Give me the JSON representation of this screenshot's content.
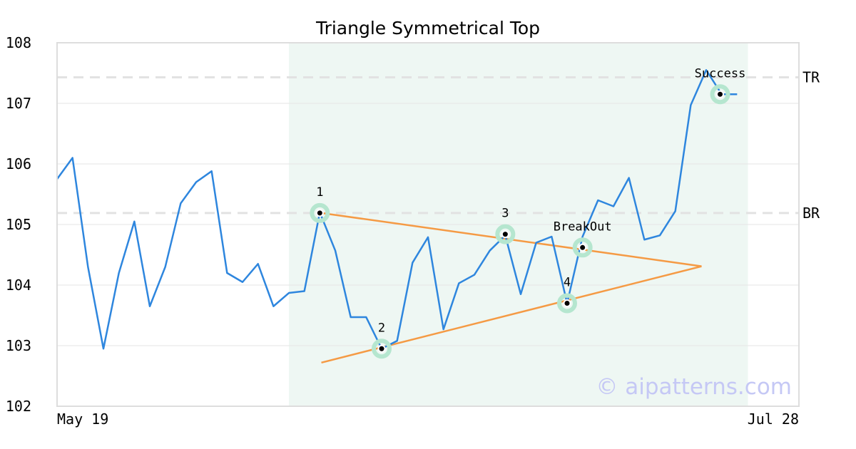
{
  "chart_data": {
    "type": "line",
    "title": "Triangle Symmetrical Top",
    "xlabel": "",
    "ylabel": "",
    "ylim": [
      102,
      108
    ],
    "yticks": [
      102,
      103,
      104,
      105,
      106,
      107,
      108
    ],
    "xlim": [
      0,
      48
    ],
    "x_tick_labels": [
      {
        "x": 0,
        "label": "May 19"
      },
      {
        "x": 48,
        "label": "Jul 28"
      }
    ],
    "grid": "horizontal",
    "series": [
      {
        "color": "#2e86de",
        "values": [
          105.75,
          106.1,
          104.3,
          102.95,
          104.2,
          105.05,
          103.65,
          104.3,
          105.35,
          105.7,
          105.88,
          104.2,
          104.05,
          104.35,
          103.65,
          103.87,
          103.9,
          105.2,
          104.57,
          103.47,
          103.47,
          102.95,
          103.08,
          104.37,
          104.79,
          103.27,
          104.03,
          104.17,
          104.57,
          104.82,
          103.85,
          104.7,
          104.8,
          103.7,
          104.8,
          105.4,
          105.3,
          105.77,
          104.75,
          104.82,
          105.22,
          106.97,
          107.55,
          107.15,
          107.15
        ]
      }
    ],
    "pattern_region": {
      "x_start": 15,
      "x_end": 44.7,
      "color": "#eef7f3"
    },
    "reference_lines": [
      {
        "label": "TR",
        "value": 107.43,
        "color": "#e2e2e2"
      },
      {
        "label": "BR",
        "value": 105.19,
        "color": "#e2e2e2"
      }
    ],
    "trend_lines": [
      {
        "color": "#f59a44",
        "points": [
          [
            17.1,
            105.19
          ],
          [
            41.7,
            104.31
          ]
        ]
      },
      {
        "color": "#f59a44",
        "points": [
          [
            17.1,
            102.72
          ],
          [
            41.7,
            104.31
          ]
        ]
      }
    ],
    "pattern_points": [
      {
        "label": "1",
        "x": 17,
        "y": 105.19
      },
      {
        "label": "2",
        "x": 21,
        "y": 102.95
      },
      {
        "label": "3",
        "x": 29,
        "y": 104.84
      },
      {
        "label": "4",
        "x": 33,
        "y": 103.7
      },
      {
        "label": "BreakOut",
        "x": 34,
        "y": 104.62
      },
      {
        "label": "Success",
        "x": 42.9,
        "y": 107.15
      }
    ],
    "marker_halo_color": "#b5e6cf",
    "watermark": "© aipatterns.com"
  }
}
